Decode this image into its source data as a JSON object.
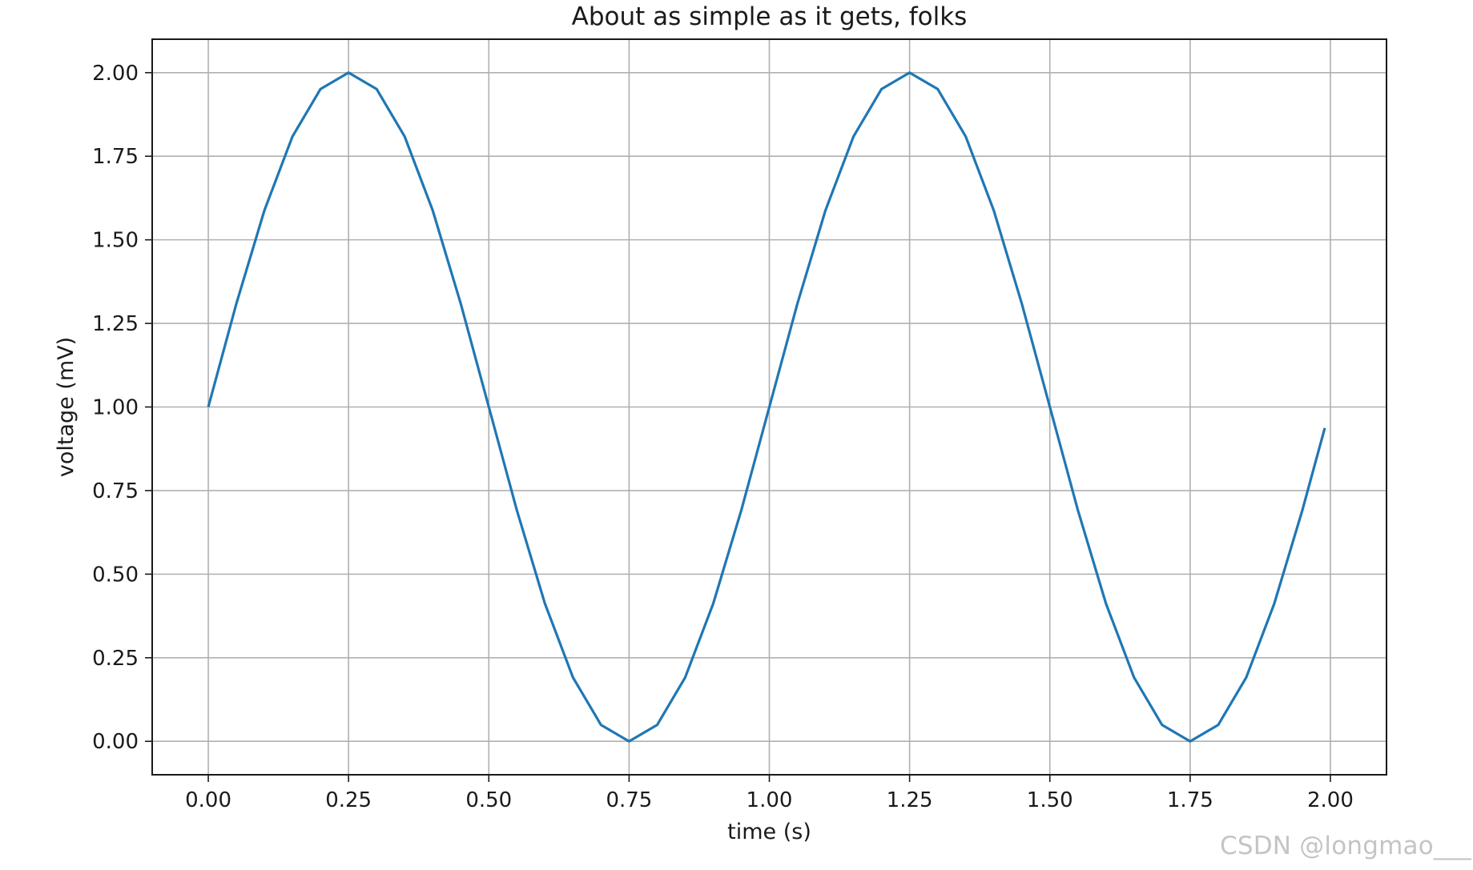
{
  "chart_data": {
    "type": "line",
    "title": "About as simple as it gets, folks",
    "xlabel": "time (s)",
    "ylabel": "voltage (mV)",
    "xlim": [
      -0.1,
      2.1
    ],
    "ylim": [
      -0.1,
      2.1
    ],
    "xticks": [
      0.0,
      0.25,
      0.5,
      0.75,
      1.0,
      1.25,
      1.5,
      1.75,
      2.0
    ],
    "xtick_labels": [
      "0.00",
      "0.25",
      "0.50",
      "0.75",
      "1.00",
      "1.25",
      "1.50",
      "1.75",
      "2.00"
    ],
    "yticks": [
      0.0,
      0.25,
      0.5,
      0.75,
      1.0,
      1.25,
      1.5,
      1.75,
      2.0
    ],
    "ytick_labels": [
      "0.00",
      "0.25",
      "0.50",
      "0.75",
      "1.00",
      "1.25",
      "1.50",
      "1.75",
      "2.00"
    ],
    "grid": true,
    "series": [
      {
        "color": "#1f77b4",
        "x": [
          0.0,
          0.05,
          0.1,
          0.15,
          0.2,
          0.25,
          0.3,
          0.35,
          0.4,
          0.45,
          0.5,
          0.55,
          0.6,
          0.65,
          0.7,
          0.75,
          0.8,
          0.85,
          0.9,
          0.95,
          1.0,
          1.05,
          1.1,
          1.15,
          1.2,
          1.25,
          1.3,
          1.35,
          1.4,
          1.45,
          1.5,
          1.55,
          1.6,
          1.65,
          1.7,
          1.75,
          1.8,
          1.85,
          1.9,
          1.95,
          1.99
        ],
        "y": [
          1.0,
          1.309,
          1.588,
          1.809,
          1.951,
          2.0,
          1.951,
          1.809,
          1.588,
          1.309,
          1.0,
          0.691,
          0.412,
          0.191,
          0.049,
          0.0,
          0.049,
          0.191,
          0.412,
          0.691,
          1.0,
          1.309,
          1.588,
          1.809,
          1.951,
          2.0,
          1.951,
          1.809,
          1.588,
          1.309,
          1.0,
          0.691,
          0.412,
          0.191,
          0.049,
          0.0,
          0.049,
          0.191,
          0.412,
          0.691,
          0.937
        ]
      }
    ]
  },
  "watermark": "CSDN @longmao___"
}
